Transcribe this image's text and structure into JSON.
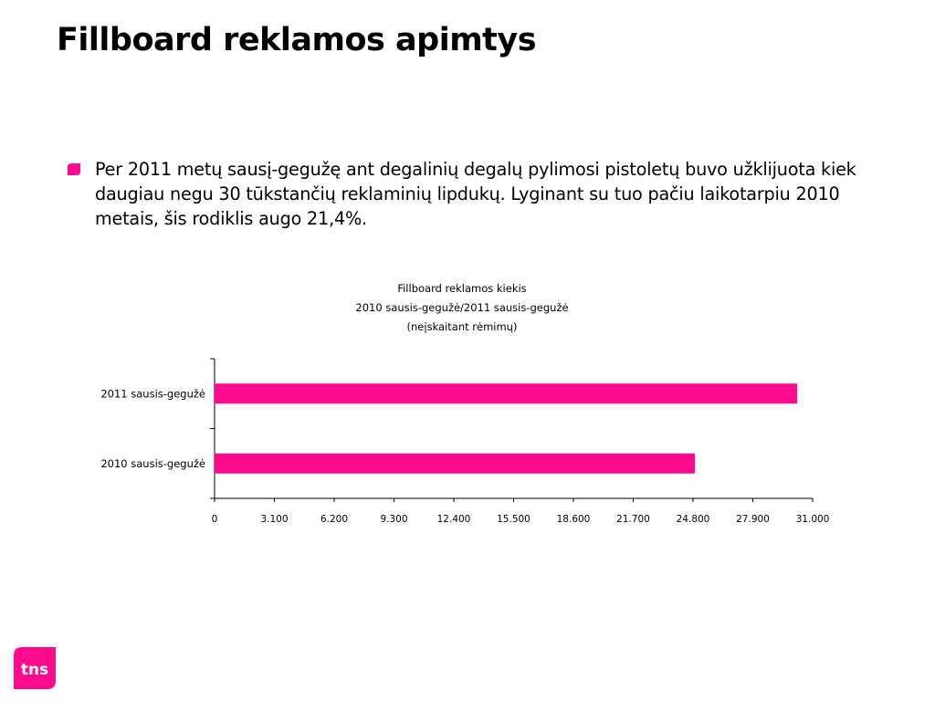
{
  "slide": {
    "title": "Fillboard reklamos apimtys",
    "bullet_text": "Per 2011 metų sausį-gegužę ant degalinių degalų pylimosi pistoletų buvo užklijuota kiek daugiau negu 30 tūkstančių reklaminių lipdukų. Lyginant su tuo pačiu laikotarpiu 2010 metais, šis rodiklis augo 21,4%.",
    "logo_text": "tns"
  },
  "colors": {
    "accent": "#ff0a8c",
    "axis": "#000000",
    "text": "#000000"
  },
  "chart_data": {
    "type": "bar",
    "orientation": "horizontal",
    "title_lines": [
      "Fillboard reklamos kiekis",
      "2010 sausis-gegužė/2011 sausis-gegužė",
      "(neįskaitant rėmimų)"
    ],
    "categories": [
      "2011 sausis-gegužė",
      "2010 sausis-gegužė"
    ],
    "values": [
      30200,
      24900
    ],
    "x_ticks": [
      "0",
      "3.100",
      "6.200",
      "9.300",
      "12.400",
      "15.500",
      "18.600",
      "21.700",
      "24.800",
      "27.900",
      "31.000"
    ],
    "xlim": [
      0,
      31000
    ],
    "grid": false,
    "legend": "none"
  }
}
